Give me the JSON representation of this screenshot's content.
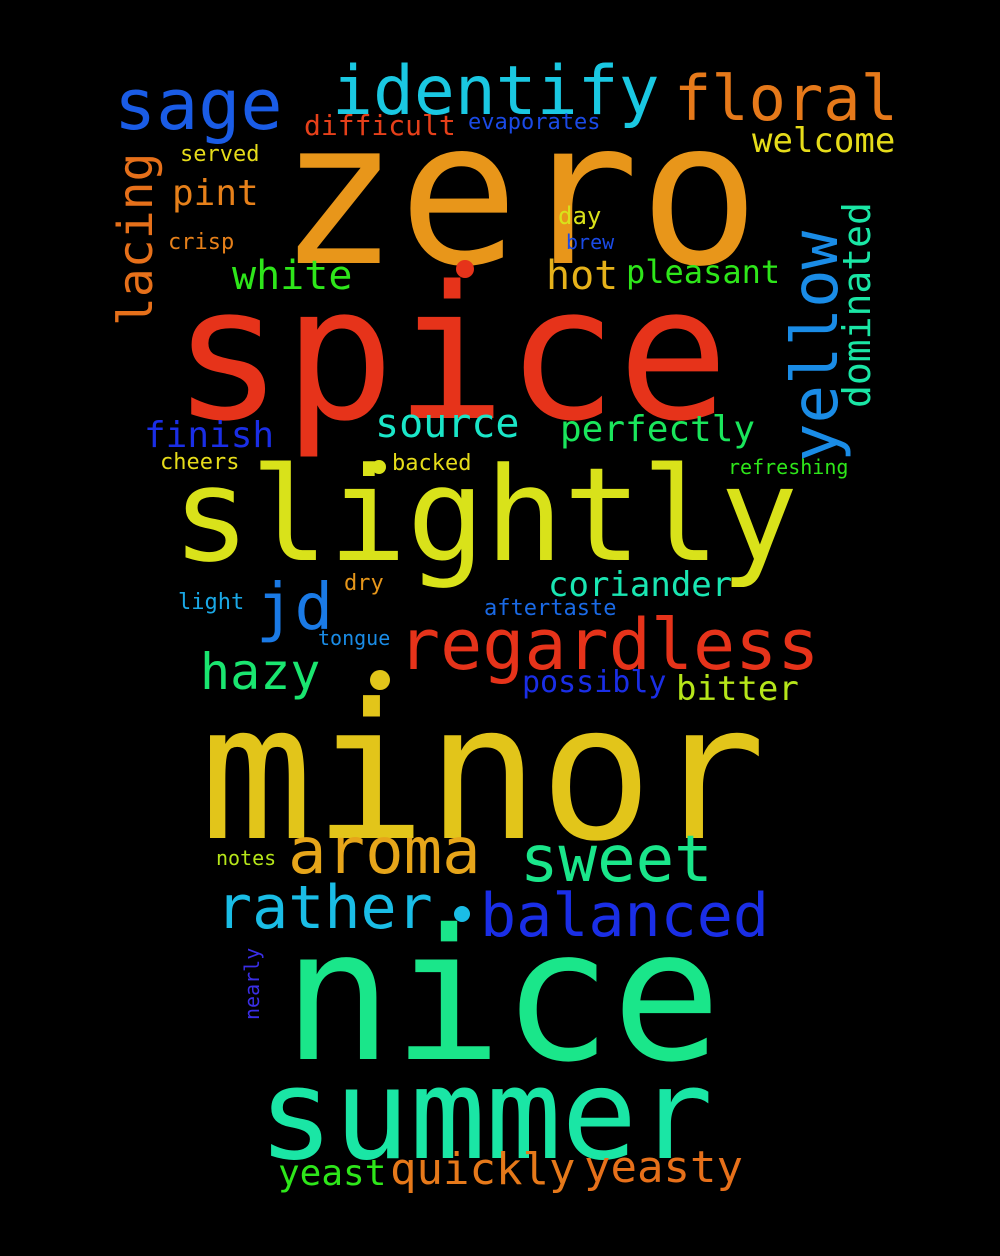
{
  "background": "#000000",
  "words": [
    {
      "text": "zero",
      "color": "#E8961A"
    },
    {
      "text": "spice",
      "color": "#E6331A"
    },
    {
      "text": "slightly",
      "color": "#D9E21A"
    },
    {
      "text": "minor",
      "color": "#E2C51A"
    },
    {
      "text": "nice",
      "color": "#1AE68A"
    },
    {
      "text": "summer",
      "color": "#1AE6A5"
    },
    {
      "text": "identify",
      "color": "#1AC8E2"
    },
    {
      "text": "sage",
      "color": "#1A5CE6"
    },
    {
      "text": "floral",
      "color": "#E6791A"
    },
    {
      "text": "regardless",
      "color": "#E6331A"
    },
    {
      "text": "yellow",
      "color": "#1A8CE6"
    },
    {
      "text": "jd",
      "color": "#1A7AE6"
    },
    {
      "text": "aroma",
      "color": "#E6A51A"
    },
    {
      "text": "sweet",
      "color": "#1AE68A"
    },
    {
      "text": "balanced",
      "color": "#1A2EE6"
    },
    {
      "text": "rather",
      "color": "#1ABDE6"
    },
    {
      "text": "hazy",
      "color": "#1AE670"
    },
    {
      "text": "lacing",
      "color": "#E6701A"
    },
    {
      "text": "white",
      "color": "#2EE61A"
    },
    {
      "text": "hot",
      "color": "#E6B21A"
    },
    {
      "text": "dominated",
      "color": "#1AE6A5"
    },
    {
      "text": "source",
      "color": "#1AE6C8"
    },
    {
      "text": "perfectly",
      "color": "#1AE65C"
    },
    {
      "text": "finish",
      "color": "#1A2EE6"
    },
    {
      "text": "coriander",
      "color": "#1AE6B2"
    },
    {
      "text": "welcome",
      "color": "#E6DC1A"
    },
    {
      "text": "pint",
      "color": "#E6801A"
    },
    {
      "text": "pleasant",
      "color": "#2EE61A"
    },
    {
      "text": "quickly",
      "color": "#E6791A"
    },
    {
      "text": "yeasty",
      "color": "#E6701A"
    },
    {
      "text": "yeast",
      "color": "#2EE61A"
    },
    {
      "text": "bitter",
      "color": "#B6E61A"
    },
    {
      "text": "possibly",
      "color": "#1A2EE6"
    },
    {
      "text": "difficult",
      "color": "#E6401A"
    },
    {
      "text": "evaporates",
      "color": "#1A4AE6"
    },
    {
      "text": "served",
      "color": "#E6DC1A"
    },
    {
      "text": "crisp",
      "color": "#E6801A"
    },
    {
      "text": "day",
      "color": "#D9E21A"
    },
    {
      "text": "brew",
      "color": "#1A4AE6"
    },
    {
      "text": "cheers",
      "color": "#E6DC1A"
    },
    {
      "text": "backed",
      "color": "#E6DC1A"
    },
    {
      "text": "refreshing",
      "color": "#2EE61A"
    },
    {
      "text": "dry",
      "color": "#E6961A"
    },
    {
      "text": "light",
      "color": "#1AA8E6"
    },
    {
      "text": "aftertaste",
      "color": "#1A6AE6"
    },
    {
      "text": "tongue",
      "color": "#1A8CE6"
    },
    {
      "text": "notes",
      "color": "#B6E61A"
    },
    {
      "text": "nearly",
      "color": "#3A2EE6"
    }
  ]
}
